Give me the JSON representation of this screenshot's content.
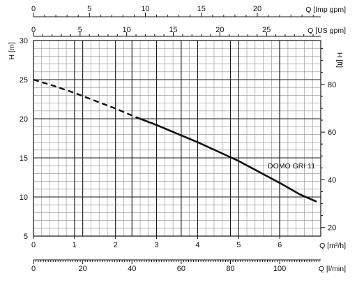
{
  "chart_data": {
    "type": "line",
    "title": "",
    "series": [
      {
        "name": "DOMO GRI 11",
        "x": [
          0,
          0.5,
          1.0,
          1.5,
          2.0,
          2.5,
          3.0,
          3.5,
          4.0,
          4.5,
          5.0,
          5.5,
          6.0,
          6.5,
          6.9
        ],
        "y": [
          25.0,
          24.2,
          23.3,
          22.3,
          21.3,
          20.2,
          19.2,
          18.1,
          17.0,
          15.8,
          14.6,
          13.2,
          11.8,
          10.3,
          9.4
        ],
        "dashed_until_x": 2.5
      }
    ],
    "series_label": "DOMO GRI 11",
    "axes": {
      "bottom_primary": {
        "label": "Q [m³/h]",
        "range": [
          0,
          7
        ],
        "ticks": [
          "0",
          "1",
          "2",
          "3",
          "4",
          "5",
          "6"
        ]
      },
      "bottom_secondary": {
        "label": "Q [l/min]",
        "range": [
          0,
          116.67
        ],
        "ticks": [
          "0",
          "20",
          "40",
          "60",
          "80",
          "100"
        ]
      },
      "top_primary": {
        "label": "Q [US gpm]",
        "range": [
          0,
          30.82
        ],
        "ticks": [
          "0",
          "5",
          "10",
          "15",
          "20",
          "25"
        ]
      },
      "top_secondary": {
        "label": "Q [Imp gpm]",
        "range": [
          0,
          25.67
        ],
        "ticks": [
          "0",
          "5",
          "10",
          "15",
          "20"
        ]
      },
      "left": {
        "label": "H [m]",
        "range": [
          5,
          30
        ],
        "ticks": [
          "5",
          "10",
          "15",
          "20",
          "25",
          "30"
        ]
      },
      "right": {
        "label": "H [ft]",
        "range": [
          16.4,
          98.4
        ],
        "ticks": [
          "20",
          "40",
          "60",
          "80"
        ]
      }
    },
    "grid": true
  }
}
